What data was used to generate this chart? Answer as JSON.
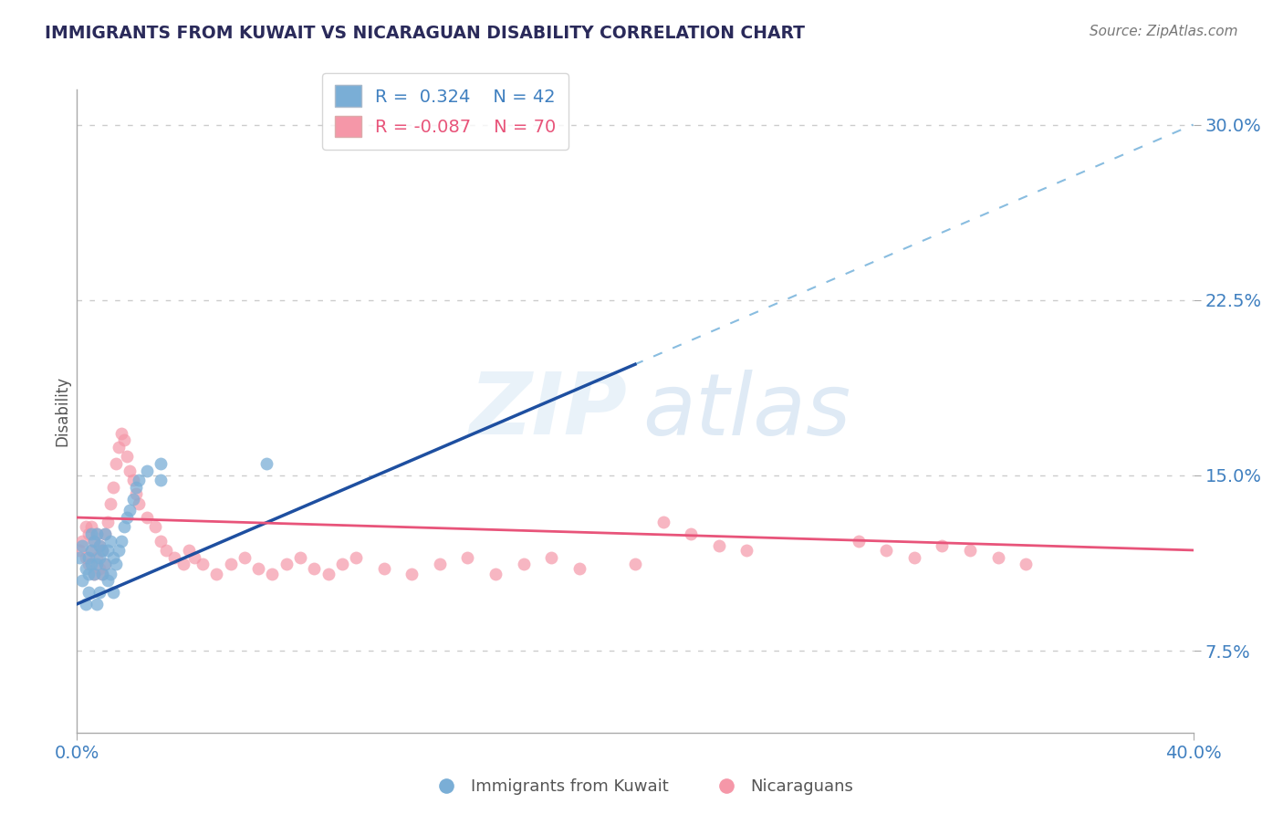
{
  "title": "IMMIGRANTS FROM KUWAIT VS NICARAGUAN DISABILITY CORRELATION CHART",
  "source": "Source: ZipAtlas.com",
  "ylabel": "Disability",
  "xlim": [
    0.0,
    0.4
  ],
  "ylim": [
    0.04,
    0.315
  ],
  "yticks": [
    0.075,
    0.15,
    0.225,
    0.3
  ],
  "ytick_labels": [
    "7.5%",
    "15.0%",
    "22.5%",
    "30.0%"
  ],
  "xtick_left": "0.0%",
  "xtick_right": "40.0%",
  "blue_color": "#7aaed6",
  "pink_color": "#f597a8",
  "blue_line_color": "#1e4fa0",
  "pink_line_color": "#e8547a",
  "blue_dash_color": "#89bde0",
  "title_color": "#2a2a5a",
  "yaxis_color": "#4080c0",
  "source_color": "#777777",
  "blue_scatter_x": [
    0.001,
    0.002,
    0.002,
    0.003,
    0.003,
    0.004,
    0.004,
    0.004,
    0.005,
    0.005,
    0.005,
    0.006,
    0.006,
    0.007,
    0.007,
    0.007,
    0.008,
    0.008,
    0.008,
    0.009,
    0.009,
    0.01,
    0.01,
    0.011,
    0.011,
    0.012,
    0.012,
    0.013,
    0.013,
    0.014,
    0.015,
    0.016,
    0.017,
    0.018,
    0.019,
    0.02,
    0.021,
    0.022,
    0.025,
    0.03,
    0.03,
    0.068
  ],
  "blue_scatter_y": [
    0.115,
    0.105,
    0.12,
    0.095,
    0.11,
    0.1,
    0.115,
    0.108,
    0.112,
    0.118,
    0.125,
    0.108,
    0.122,
    0.095,
    0.112,
    0.125,
    0.1,
    0.115,
    0.12,
    0.108,
    0.118,
    0.112,
    0.125,
    0.105,
    0.118,
    0.108,
    0.122,
    0.1,
    0.115,
    0.112,
    0.118,
    0.122,
    0.128,
    0.132,
    0.135,
    0.14,
    0.145,
    0.148,
    0.152,
    0.155,
    0.148,
    0.155
  ],
  "pink_scatter_x": [
    0.001,
    0.002,
    0.003,
    0.003,
    0.004,
    0.004,
    0.005,
    0.005,
    0.006,
    0.006,
    0.007,
    0.007,
    0.008,
    0.008,
    0.009,
    0.009,
    0.01,
    0.01,
    0.011,
    0.012,
    0.013,
    0.014,
    0.015,
    0.016,
    0.017,
    0.018,
    0.019,
    0.02,
    0.021,
    0.022,
    0.025,
    0.028,
    0.03,
    0.032,
    0.035,
    0.038,
    0.04,
    0.042,
    0.045,
    0.05,
    0.055,
    0.06,
    0.065,
    0.07,
    0.075,
    0.08,
    0.085,
    0.09,
    0.095,
    0.1,
    0.11,
    0.12,
    0.13,
    0.14,
    0.15,
    0.16,
    0.17,
    0.18,
    0.2,
    0.21,
    0.22,
    0.23,
    0.24,
    0.28,
    0.29,
    0.3,
    0.31,
    0.32,
    0.33,
    0.34
  ],
  "pink_scatter_y": [
    0.118,
    0.122,
    0.115,
    0.128,
    0.112,
    0.125,
    0.118,
    0.128,
    0.108,
    0.122,
    0.115,
    0.125,
    0.11,
    0.12,
    0.108,
    0.118,
    0.112,
    0.125,
    0.13,
    0.138,
    0.145,
    0.155,
    0.162,
    0.168,
    0.165,
    0.158,
    0.152,
    0.148,
    0.142,
    0.138,
    0.132,
    0.128,
    0.122,
    0.118,
    0.115,
    0.112,
    0.118,
    0.115,
    0.112,
    0.108,
    0.112,
    0.115,
    0.11,
    0.108,
    0.112,
    0.115,
    0.11,
    0.108,
    0.112,
    0.115,
    0.11,
    0.108,
    0.112,
    0.115,
    0.108,
    0.112,
    0.115,
    0.11,
    0.112,
    0.13,
    0.125,
    0.12,
    0.118,
    0.122,
    0.118,
    0.115,
    0.12,
    0.118,
    0.115,
    0.112
  ],
  "blue_R": 0.324,
  "pink_R": -0.087,
  "blue_line_x_solid_end": 0.2,
  "blue_line_x_dash_end": 0.4,
  "blue_line_y_at_0": 0.095,
  "blue_line_y_at_040": 0.3,
  "pink_line_y_at_0": 0.132,
  "pink_line_y_at_040": 0.118
}
